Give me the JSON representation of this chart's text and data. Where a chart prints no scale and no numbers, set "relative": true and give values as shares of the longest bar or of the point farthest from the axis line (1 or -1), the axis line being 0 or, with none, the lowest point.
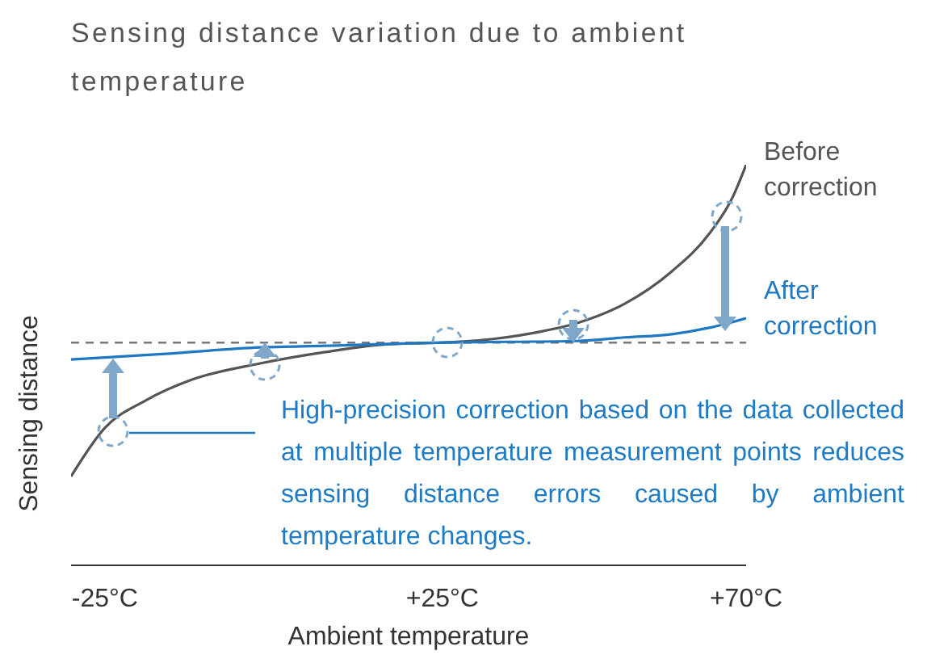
{
  "chart_data": {
    "type": "line",
    "title": "Sensing distance variation due to ambient temperature",
    "xlabel": "Ambient temperature",
    "ylabel": "Sensing distance",
    "relative": true,
    "xlim": [
      -30,
      70
    ],
    "xticks": [
      {
        "value": -25,
        "label": "-25°C"
      },
      {
        "value": 25,
        "label": "+25°C"
      },
      {
        "value": 70,
        "label": "+70°C"
      }
    ],
    "series": [
      {
        "name": "Before correction",
        "color": "#555555",
        "x": [
          -30,
          -25,
          -19,
          -12,
          -2,
          7.5,
          17,
          25,
          32.5,
          40,
          45,
          52,
          59,
          64.5,
          68,
          70
        ],
        "values": [
          0.222,
          0.343,
          0.411,
          0.464,
          0.504,
          0.532,
          0.552,
          0.556,
          0.565,
          0.585,
          0.605,
          0.653,
          0.734,
          0.827,
          0.919,
          1
        ]
      },
      {
        "name": "After correction",
        "color": "#1f78c1",
        "x": [
          -30,
          -16,
          -2,
          7.5,
          25,
          35,
          45,
          52,
          59,
          64.5,
          70
        ],
        "values": [
          0.514,
          0.528,
          0.544,
          0.548,
          0.556,
          0.558,
          0.56,
          0.569,
          0.577,
          0.593,
          0.617
        ]
      }
    ],
    "ref_lines": [
      {
        "axis": "y",
        "value": 0.556,
        "color": "#777777",
        "line_style": "dashed"
      }
    ],
    "annotations": [
      "High-precision correction based on the data collected at multiple temperature measurement points reduces sensing distance errors caused by ambient temperature changes."
    ],
    "legend": false,
    "grid": false,
    "marker": "none",
    "line_style": "solid"
  }
}
